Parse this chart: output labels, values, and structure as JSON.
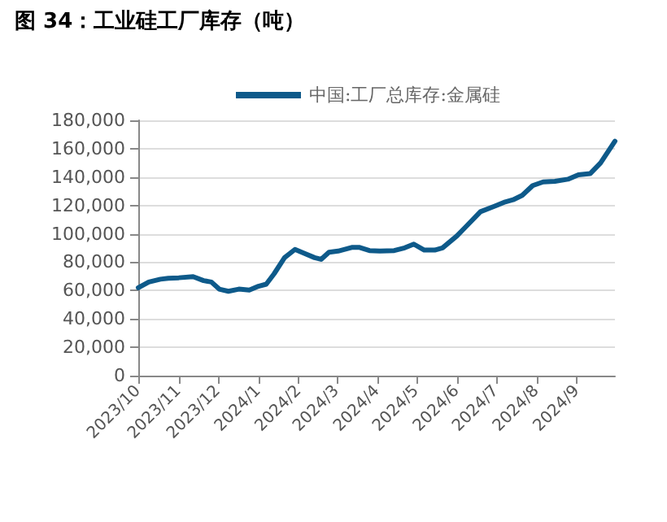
{
  "chart_data": {
    "type": "line",
    "title": "图 34：工业硅工厂库存（吨）",
    "x": [
      "2023-10-01",
      "2023-10-09",
      "2023-10-18",
      "2023-10-24",
      "2023-11-01",
      "2023-11-12",
      "2023-11-20",
      "2023-11-26",
      "2023-12-02",
      "2023-12-09",
      "2023-12-17",
      "2023-12-25",
      "2024-01-01",
      "2024-01-07",
      "2024-01-13",
      "2024-01-21",
      "2024-01-29",
      "2024-02-05",
      "2024-02-13",
      "2024-02-18",
      "2024-02-24",
      "2024-03-02",
      "2024-03-13",
      "2024-03-18",
      "2024-03-26",
      "2024-04-03",
      "2024-04-14",
      "2024-04-22",
      "2024-04-29",
      "2024-05-07",
      "2024-05-15",
      "2024-05-21",
      "2024-06-01",
      "2024-06-07",
      "2024-06-19",
      "2024-06-30",
      "2024-07-08",
      "2024-07-14",
      "2024-07-21",
      "2024-07-29",
      "2024-08-06",
      "2024-08-15",
      "2024-08-25",
      "2024-09-02",
      "2024-09-11",
      "2024-09-19",
      "2024-09-30"
    ],
    "series": [
      {
        "name": "中国:工厂总库存:金属硅",
        "color": "#0e5a8a",
        "values": [
          62000,
          66000,
          68000,
          68700,
          69000,
          69800,
          67000,
          66000,
          61000,
          59500,
          61000,
          60300,
          63000,
          64500,
          71800,
          83200,
          89000,
          86300,
          83200,
          82000,
          87000,
          87800,
          90500,
          90500,
          88200,
          87800,
          88200,
          90100,
          92700,
          88500,
          88500,
          90100,
          98500,
          104200,
          115600,
          119500,
          122500,
          124000,
          127100,
          134000,
          136600,
          137000,
          138500,
          141600,
          142400,
          150000,
          165300
        ]
      }
    ],
    "xlim": [
      "2023-10-01",
      "2024-09-30"
    ],
    "xticks": [
      {
        "value": "2023-10-01",
        "label": "2023/10"
      },
      {
        "value": "2023-11-01",
        "label": "2023/11"
      },
      {
        "value": "2023-12-01",
        "label": "2023/12"
      },
      {
        "value": "2024-01-01",
        "label": "2024/1"
      },
      {
        "value": "2024-02-01",
        "label": "2024/2"
      },
      {
        "value": "2024-03-01",
        "label": "2024/3"
      },
      {
        "value": "2024-04-01",
        "label": "2024/4"
      },
      {
        "value": "2024-05-01",
        "label": "2024/5"
      },
      {
        "value": "2024-06-01",
        "label": "2024/6"
      },
      {
        "value": "2024-07-01",
        "label": "2024/7"
      },
      {
        "value": "2024-08-01",
        "label": "2024/8"
      },
      {
        "value": "2024-09-01",
        "label": "2024/9"
      }
    ],
    "ylim": [
      0,
      180000
    ],
    "yticks": [
      {
        "value": 0,
        "label": "0"
      },
      {
        "value": 20000,
        "label": "20,000"
      },
      {
        "value": 40000,
        "label": "40,000"
      },
      {
        "value": 60000,
        "label": "60,000"
      },
      {
        "value": 80000,
        "label": "80,000"
      },
      {
        "value": 100000,
        "label": "100,000"
      },
      {
        "value": 120000,
        "label": "120,000"
      },
      {
        "value": 140000,
        "label": "140,000"
      },
      {
        "value": 160000,
        "label": "160,000"
      },
      {
        "value": 180000,
        "label": "180,000"
      }
    ],
    "grid": "y",
    "legend": "top",
    "marker": "none",
    "line_style": "solid"
  }
}
